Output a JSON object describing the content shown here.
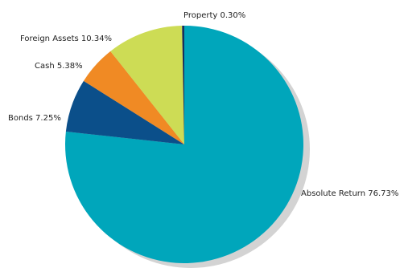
{
  "chart_data": {
    "type": "pie",
    "title": "",
    "slices": [
      {
        "label": "Absolute Return",
        "text": "Absolute Return 76.73%",
        "value": 76.73,
        "color": "#00a6bb"
      },
      {
        "label": "Bonds",
        "text": "Bonds 7.25%",
        "value": 7.25,
        "color": "#0b4f8a"
      },
      {
        "label": "Cash",
        "text": "Cash 5.38%",
        "value": 5.38,
        "color": "#f08a24"
      },
      {
        "label": "Foreign Assets",
        "text": "Foreign Assets 10.34%",
        "value": 10.34,
        "color": "#cddc55"
      },
      {
        "label": "Property",
        "text": "Property 0.30%",
        "value": 0.3,
        "color": "#1a2f5a"
      }
    ],
    "legend": "none",
    "shadow_color": "#d3d3d3"
  }
}
